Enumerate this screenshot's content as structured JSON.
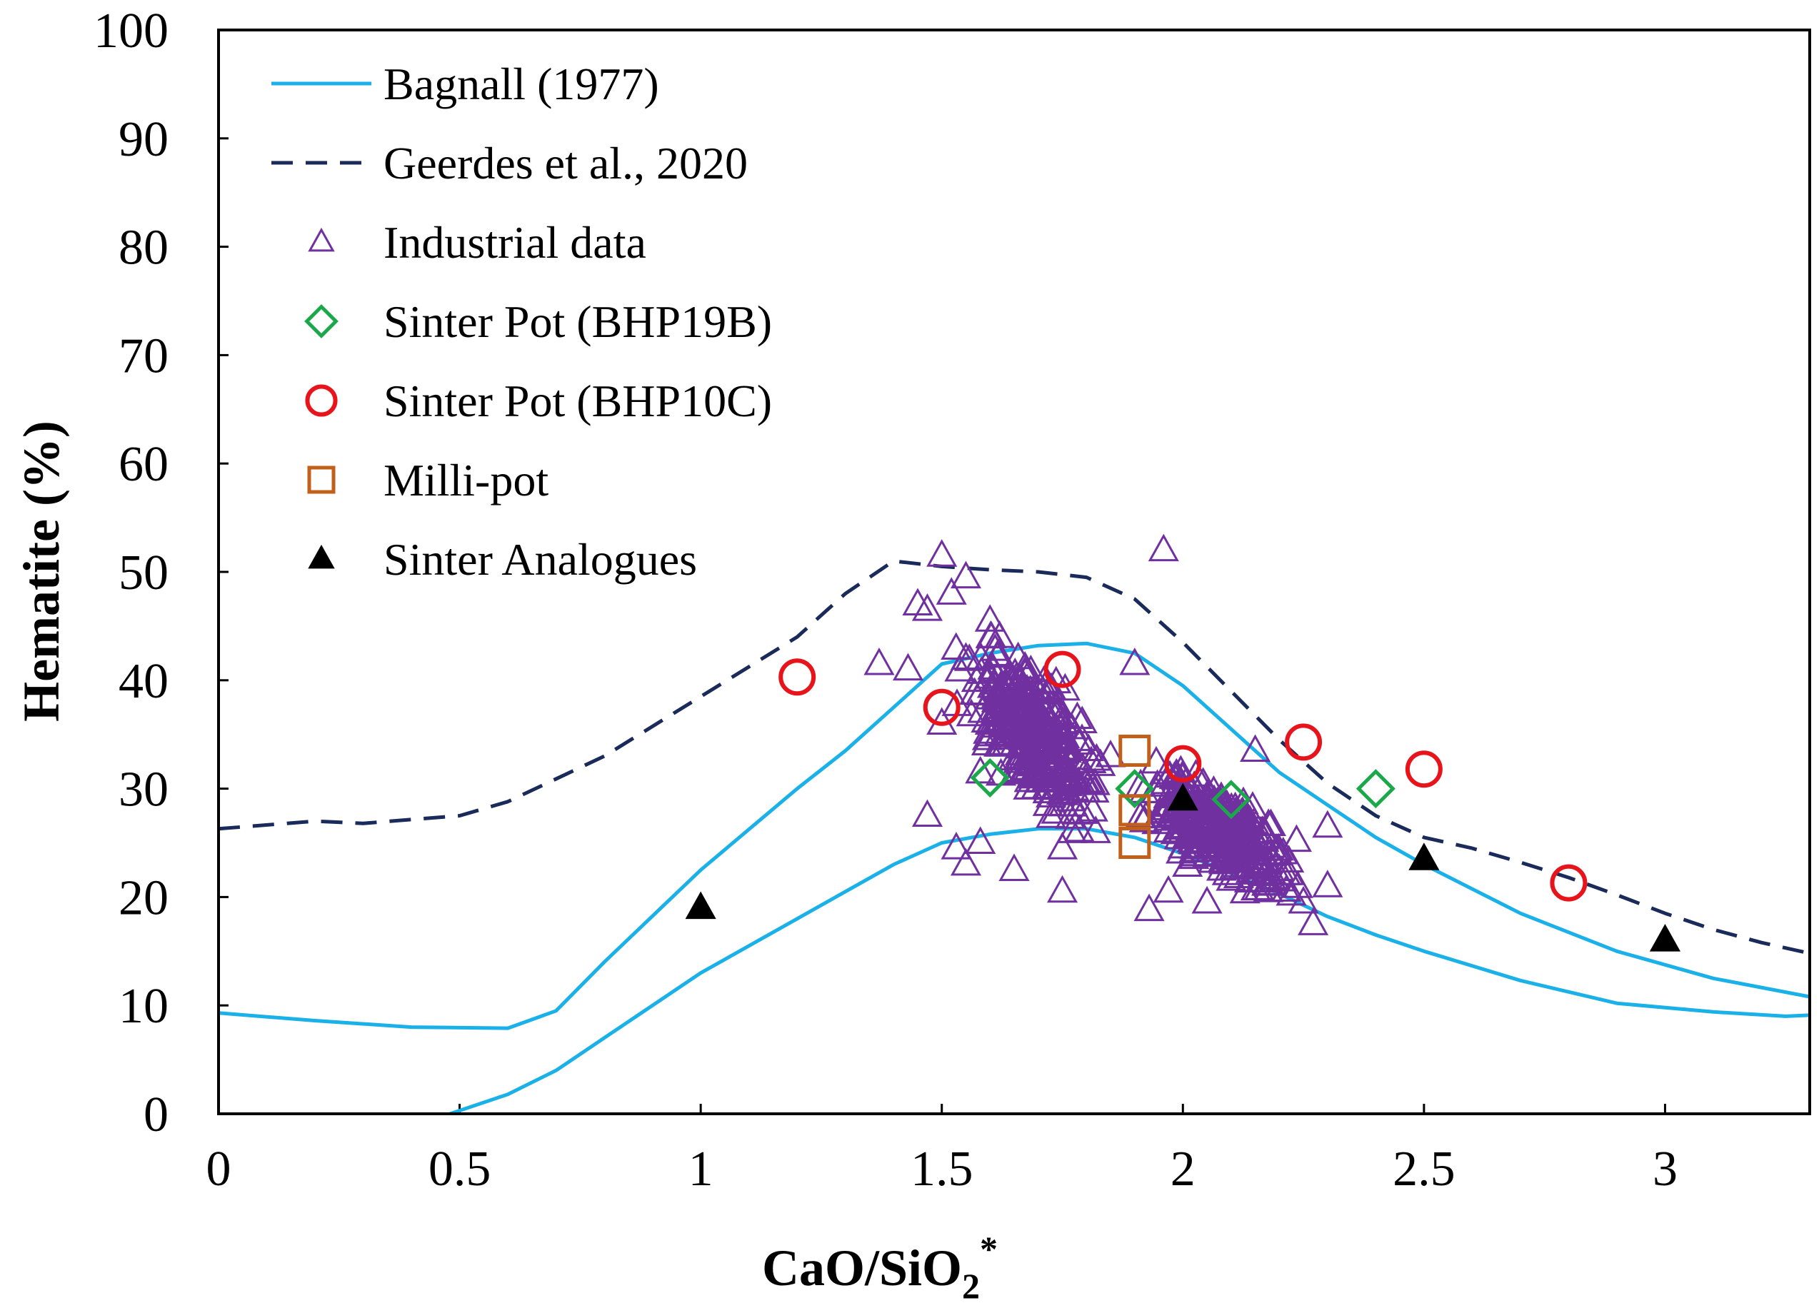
{
  "chart_data": {
    "type": "scatter",
    "title": "",
    "xlabel": "CaO/SiO",
    "xlabel_sub": "2",
    "xlabel_sup": "*",
    "ylabel": "Hematite  (%)",
    "xlim": [
      0,
      3.3
    ],
    "ylim": [
      0,
      100
    ],
    "x_ticks": [
      "0",
      "0.5",
      "1",
      "1.5",
      "2",
      "2.5",
      "3"
    ],
    "y_ticks": [
      "0",
      "10",
      "20",
      "30",
      "40",
      "50",
      "60",
      "70",
      "80",
      "90",
      "100"
    ],
    "legend_position": "top-left",
    "colors": {
      "bagnall": "#1ab0e8",
      "geerdes": "#1a2a5a",
      "industrial": "#7030a0",
      "bhp19b": "#1aa84a",
      "bhp10c": "#e8141c",
      "millipot": "#c0601a",
      "analogues": "#000000"
    },
    "series": [
      {
        "name": "Bagnall (1977)",
        "kind": "line",
        "style": "solid",
        "color_key": "bagnall",
        "segments": [
          [
            [
              0,
              9.3
            ],
            [
              0.2,
              8.6
            ],
            [
              0.4,
              8.0
            ],
            [
              0.6,
              7.9
            ],
            [
              0.7,
              9.5
            ],
            [
              0.8,
              14
            ],
            [
              1.0,
              22.5
            ],
            [
              1.2,
              30
            ],
            [
              1.3,
              33.5
            ],
            [
              1.4,
              37.5
            ],
            [
              1.5,
              41.5
            ],
            [
              1.6,
              42.5
            ],
            [
              1.7,
              43.2
            ],
            [
              1.8,
              43.4
            ],
            [
              1.9,
              42.5
            ],
            [
              2.0,
              39.5
            ],
            [
              2.1,
              35.5
            ],
            [
              2.2,
              31.5
            ],
            [
              2.3,
              28.5
            ],
            [
              2.4,
              25.5
            ],
            [
              2.5,
              23.0
            ],
            [
              2.7,
              18.5
            ],
            [
              2.9,
              15.0
            ],
            [
              3.1,
              12.5
            ],
            [
              3.3,
              10.8
            ]
          ],
          [
            [
              0.48,
              0
            ],
            [
              0.6,
              1.8
            ],
            [
              0.7,
              4.0
            ],
            [
              0.8,
              7.0
            ],
            [
              1.0,
              13
            ],
            [
              1.2,
              18.0
            ],
            [
              1.3,
              20.5
            ],
            [
              1.4,
              23.0
            ],
            [
              1.5,
              25.0
            ],
            [
              1.6,
              25.8
            ],
            [
              1.7,
              26.3
            ],
            [
              1.8,
              26.3
            ],
            [
              1.9,
              25.5
            ],
            [
              2.0,
              24.0
            ],
            [
              2.1,
              22.2
            ],
            [
              2.2,
              20.3
            ],
            [
              2.3,
              18.2
            ],
            [
              2.4,
              16.5
            ],
            [
              2.5,
              15.0
            ],
            [
              2.7,
              12.3
            ],
            [
              2.9,
              10.2
            ],
            [
              3.1,
              9.4
            ],
            [
              3.25,
              9.0
            ],
            [
              3.3,
              9.1
            ]
          ]
        ]
      },
      {
        "name": "Geerdes et al., 2020",
        "kind": "line",
        "style": "dashed",
        "color_key": "geerdes",
        "points": [
          [
            0,
            26.3
          ],
          [
            0.2,
            27.0
          ],
          [
            0.3,
            26.8
          ],
          [
            0.5,
            27.5
          ],
          [
            0.6,
            28.8
          ],
          [
            0.8,
            33.0
          ],
          [
            1.0,
            38.5
          ],
          [
            1.2,
            44.0
          ],
          [
            1.3,
            48.0
          ],
          [
            1.4,
            51.0
          ],
          [
            1.5,
            50.5
          ],
          [
            1.6,
            50.2
          ],
          [
            1.7,
            50.0
          ],
          [
            1.8,
            49.5
          ],
          [
            1.9,
            47.5
          ],
          [
            2.0,
            43.5
          ],
          [
            2.1,
            39.0
          ],
          [
            2.2,
            34.5
          ],
          [
            2.3,
            30.5
          ],
          [
            2.4,
            27.5
          ],
          [
            2.5,
            25.5
          ],
          [
            2.6,
            24.5
          ],
          [
            2.7,
            23.2
          ],
          [
            2.8,
            21.8
          ],
          [
            2.9,
            20.2
          ],
          [
            3.0,
            18.5
          ],
          [
            3.1,
            17.0
          ],
          [
            3.2,
            15.8
          ],
          [
            3.3,
            14.8
          ]
        ]
      },
      {
        "name": "Industrial data",
        "kind": "scatter",
        "marker": "open-triangle",
        "color_key": "industrial",
        "points": [
          [
            1.37,
            41.5
          ],
          [
            1.43,
            41.0
          ],
          [
            1.45,
            47.0
          ],
          [
            1.47,
            46.5
          ],
          [
            1.5,
            51.5
          ],
          [
            1.52,
            48.0
          ],
          [
            1.55,
            49.5
          ],
          [
            1.6,
            45.5
          ],
          [
            1.62,
            44.0
          ],
          [
            1.55,
            23.0
          ],
          [
            1.53,
            24.5
          ],
          [
            1.58,
            25.0
          ],
          [
            1.65,
            22.5
          ],
          [
            1.75,
            20.5
          ],
          [
            1.75,
            24.5
          ],
          [
            1.96,
            52.0
          ],
          [
            1.9,
            41.5
          ],
          [
            1.8,
            30.5
          ],
          [
            2.15,
            33.5
          ],
          [
            2.3,
            26.5
          ],
          [
            2.25,
            19.5
          ],
          [
            2.27,
            17.5
          ],
          [
            1.93,
            18.8
          ],
          [
            1.97,
            20.5
          ],
          [
            2.05,
            19.5
          ],
          [
            1.47,
            27.5
          ],
          [
            1.6,
            36.0
          ],
          [
            1.7,
            38.0
          ],
          [
            1.55,
            42.0
          ],
          [
            1.65,
            34.0
          ],
          [
            1.85,
            33.0
          ],
          [
            2.05,
            27.0
          ],
          [
            2.1,
            23.5
          ],
          [
            2.2,
            22.5
          ],
          [
            2.3,
            21.0
          ],
          [
            1.92,
            27.0
          ],
          [
            2.0,
            31.0
          ],
          [
            1.72,
            28.5
          ],
          [
            1.58,
            31.5
          ],
          [
            1.5,
            36.0
          ]
        ],
        "clusters": [
          {
            "x_range": [
              1.48,
              1.9
            ],
            "y_range": [
              26,
              44
            ],
            "count": 300
          },
          {
            "x_range": [
              1.85,
              2.3
            ],
            "y_range": [
              19,
              33
            ],
            "count": 300
          }
        ]
      },
      {
        "name": "Sinter Pot (BHP19B)",
        "kind": "scatter",
        "marker": "open-diamond",
        "color_key": "bhp19b",
        "points": [
          [
            1.6,
            31.0
          ],
          [
            1.9,
            30.0
          ],
          [
            2.1,
            29.0
          ],
          [
            2.4,
            30.0
          ]
        ]
      },
      {
        "name": "Sinter Pot (BHP10C)",
        "kind": "scatter",
        "marker": "open-circle",
        "color_key": "bhp10c",
        "points": [
          [
            1.2,
            40.3
          ],
          [
            1.5,
            37.5
          ],
          [
            1.75,
            41.0
          ],
          [
            2.0,
            32.3
          ],
          [
            2.25,
            34.3
          ],
          [
            2.5,
            31.8
          ],
          [
            2.8,
            21.3
          ]
        ]
      },
      {
        "name": "Milli-pot",
        "kind": "scatter",
        "marker": "open-square",
        "color_key": "millipot",
        "points": [
          [
            1.9,
            33.5
          ],
          [
            1.9,
            28.0
          ],
          [
            1.9,
            25.0
          ]
        ]
      },
      {
        "name": "Sinter Analogues",
        "kind": "scatter",
        "marker": "filled-triangle",
        "color_key": "analogues",
        "points": [
          [
            1.0,
            19.0
          ],
          [
            2.0,
            29.0
          ],
          [
            2.5,
            23.5
          ],
          [
            3.0,
            16.0
          ]
        ]
      }
    ]
  }
}
